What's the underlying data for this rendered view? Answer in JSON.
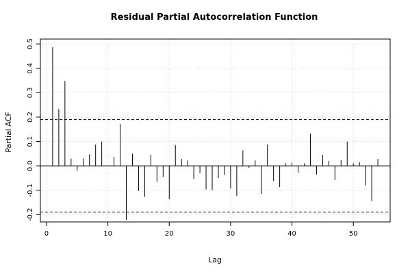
{
  "chart_data": {
    "type": "bar",
    "title": "Residual Partial Autocorrelation Function",
    "xlabel": "Lag",
    "ylabel": "Partial ACF",
    "xlim": [
      -1,
      56
    ],
    "ylim": [
      -0.23,
      0.52
    ],
    "x_ticks": [
      "0",
      "10",
      "20",
      "30",
      "40",
      "50"
    ],
    "y_ticks": [
      "-0.2",
      "-0.1",
      "0.0",
      "0.1",
      "0.2",
      "0.3",
      "0.4",
      "0.5"
    ],
    "grid": true,
    "confidence_bounds": [
      0.19,
      -0.19
    ],
    "confidence_color": "#0000cc",
    "x": [
      1,
      2,
      3,
      4,
      5,
      6,
      7,
      8,
      9,
      10,
      11,
      12,
      13,
      14,
      15,
      16,
      17,
      18,
      19,
      20,
      21,
      22,
      23,
      24,
      25,
      26,
      27,
      28,
      29,
      30,
      31,
      32,
      33,
      34,
      35,
      36,
      37,
      38,
      39,
      40,
      41,
      42,
      43,
      44,
      45,
      46,
      47,
      48,
      49,
      50,
      51,
      52,
      53,
      54
    ],
    "values": [
      0.487,
      0.233,
      0.348,
      0.03,
      -0.02,
      0.03,
      0.047,
      0.087,
      0.1,
      0.002,
      0.037,
      0.172,
      -0.222,
      0.05,
      -0.103,
      -0.127,
      0.045,
      -0.065,
      -0.045,
      -0.137,
      0.085,
      0.028,
      0.022,
      -0.053,
      -0.03,
      -0.097,
      -0.1,
      -0.05,
      -0.037,
      -0.093,
      -0.123,
      0.063,
      -0.008,
      0.022,
      -0.115,
      0.087,
      -0.062,
      -0.087,
      0.01,
      0.013,
      -0.028,
      0.01,
      0.132,
      -0.035,
      0.045,
      0.02,
      -0.058,
      0.023,
      0.1,
      0.01,
      0.015,
      -0.08,
      -0.145,
      0.028
    ]
  }
}
